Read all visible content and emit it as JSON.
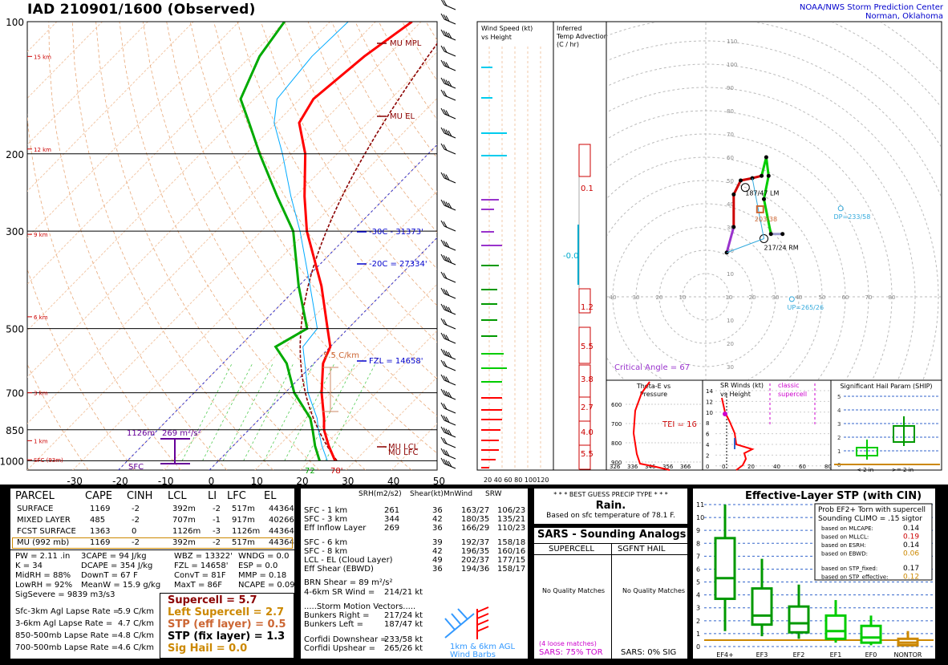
{
  "header": {
    "title": "IAD   210901/1600  (Observed)",
    "credit_line1": "NOAA/NWS Storm Prediction Center",
    "credit_line2": "Norman, Oklahoma"
  },
  "skewt": {
    "pressure_labels": [
      "100",
      "200",
      "300",
      "500",
      "700",
      "850",
      "1000"
    ],
    "temp_labels": [
      "-30",
      "-20",
      "-10",
      "0",
      "10",
      "20",
      "30",
      "40",
      "50"
    ],
    "height_labels": [
      "15 km",
      "12 km",
      "9 km",
      "6 km",
      "3 km",
      "1 km",
      "SFC (93m)"
    ],
    "annotations": {
      "mu_mpl": "MU  MPL",
      "mu_el": "MU  EL",
      "minus30": "-30C - 31373'",
      "minus20": "-20C = 27334'",
      "fzl": "FZL = 14658'",
      "lapse": "5.5 C/km",
      "mu_lcl": "MU  LCL",
      "mu_lfc": "MU  LFC",
      "pbl": "1126m",
      "srh": "269 m²/s²",
      "sfc": "SFC",
      "dewpoint_sfc": "72",
      "temp_sfc": "78'"
    },
    "colors": {
      "temperature": "#ff0000",
      "dewpoint": "#00aa00",
      "virtual": "#cc0000",
      "parcel": "#8b0000",
      "wetbulb": "#00aaff"
    }
  },
  "chart_data": [
    {
      "type": "line",
      "title": "",
      "xlabel": "",
      "ylabel": "",
      "xlim": [
        -40,
        50
      ],
      "ylim": [
        1000,
        100
      ],
      "series": [
        {
          "name": "",
          "p": [
            1000,
            925,
            850,
            800,
            700,
            600,
            550,
            500,
            400,
            300,
            250,
            200,
            170,
            150,
            120,
            100
          ],
          "values": [
            25.6,
            21,
            16.5,
            14,
            8,
            2,
            0,
            -4.5,
            -15,
            -30,
            -38,
            -47,
            -55,
            -57,
            -55,
            -52
          ]
        },
        {
          "name": "",
          "p": [
            1000,
            925,
            850,
            800,
            700,
            600,
            550,
            500,
            400,
            300,
            250,
            200,
            170,
            150,
            120,
            100
          ],
          "values": [
            22.2,
            18,
            14,
            11,
            2,
            -6,
            -12,
            -9,
            -20,
            -33,
            -44,
            -57,
            -66,
            -73,
            -78,
            -80
          ]
        }
      ]
    },
    {
      "type": "scatter",
      "title": "",
      "xlabel": "",
      "ylabel": "",
      "xlim": [
        -50,
        80
      ],
      "ylim": [
        -30,
        110
      ],
      "series": [
        {
          "name": "",
          "x": [
            9,
            12,
            12,
            15,
            20,
            24,
            26,
            27,
            25,
            28,
            33
          ],
          "y": [
            9,
            20,
            34,
            40,
            41,
            42,
            50,
            42,
            32,
            17,
            17
          ]
        }
      ]
    }
  ],
  "barbs_panel": {
    "label1": "Wind Speed (kt)",
    "label2": "vs Height",
    "axis": "20 40 60 80 100120"
  },
  "advection": {
    "label1": "Inferred",
    "label2": "Temp Advection",
    "label3": "(C / hr)",
    "values": [
      "0.1",
      "-0.0",
      "1.2",
      "5.5",
      "3.8",
      "2.7",
      "4.0",
      "5.5"
    ]
  },
  "hodograph": {
    "rings": [
      "110",
      "100",
      "90",
      "80",
      "70",
      "60",
      "50",
      "40",
      "30",
      "20",
      "10"
    ],
    "xticks": [
      "50",
      "40",
      "30",
      "20",
      "10",
      "10",
      "20",
      "30",
      "40",
      "50",
      "60",
      "70",
      "80"
    ],
    "lower_ticks": [
      "10",
      "20",
      "30"
    ],
    "lm_label": "187/47 LM",
    "rm_label": "217/24 RM",
    "mean_label": "203/38",
    "dp_label": "DP=233/58",
    "up_label": "UP=265/26",
    "critical_angle": "Critical Angle = 67"
  },
  "theta_panel": {
    "title1": "Theta-E vs",
    "title2": "Pressure",
    "tei": "TEI = 16",
    "plevels": [
      "600",
      "700",
      "800",
      "900"
    ],
    "xticks": [
      "326",
      "336",
      "346",
      "356",
      "366"
    ]
  },
  "sr_panel": {
    "title1": "SR Winds (kt)",
    "title2": "vs Height",
    "classic1": "classic",
    "classic2": "supercell",
    "yticks": [
      "14",
      "12",
      "10",
      "8",
      "6",
      "4",
      "2",
      "0"
    ],
    "xticks": [
      "0",
      "20",
      "40",
      "60",
      "80"
    ]
  },
  "ship_panel": {
    "title": "Significant Hail Param (SHIP)",
    "yticks": [
      "5",
      "4",
      "3",
      "2",
      "1",
      "0"
    ],
    "cat1": "< 2 in",
    "cat2": ">= 2 in"
  },
  "parcel_table": {
    "headers": [
      "PARCEL",
      "CAPE",
      "CINH",
      "LCL",
      "LI",
      "LFC",
      "EL"
    ],
    "rows": [
      [
        "SURFACE",
        "1169",
        "-2",
        "392m",
        "-2",
        "517m",
        "44364'"
      ],
      [
        "MIXED LAYER",
        "485",
        "-2",
        "707m",
        "-1",
        "917m",
        "40266'"
      ],
      [
        "FCST SURFACE",
        "1363",
        "0",
        "1126m",
        "-3",
        "1126m",
        "44364'"
      ],
      [
        "MU  (992 mb)",
        "1169",
        "-2",
        "392m",
        "-2",
        "517m",
        "44364'"
      ]
    ],
    "indices": [
      [
        "PW = 2.11 .in",
        "3CAPE = 94 J/kg",
        "WBZ = 13322'",
        "WNDG = 0.0"
      ],
      [
        "K = 34",
        "DCAPE = 354 J/kg",
        "FZL = 14658'",
        "ESP = 0.0"
      ],
      [
        "MidRH = 88%",
        "DownT = 67 F",
        "ConvT = 81F",
        "MMP = 0.18"
      ],
      [
        "LowRH = 92%",
        "MeanW = 15.9 g/kg",
        "MaxT = 86F",
        "NCAPE = 0.09"
      ],
      [
        "SigSevere = 9839 m3/s3",
        "",
        "",
        ""
      ]
    ],
    "lapse": [
      [
        "Sfc-3km Agl Lapse Rate =",
        "5.9 C/km"
      ],
      [
        "3-6km Agl Lapse Rate =",
        "4.7 C/km"
      ],
      [
        "850-500mb Lapse Rate =",
        "4.8 C/km"
      ],
      [
        "700-500mb Lapse Rate =",
        "4.6 C/km"
      ]
    ],
    "composites": [
      {
        "label": "Supercell = 5.7",
        "color": "#8b0000"
      },
      {
        "label": "Left Supercell = 2.7",
        "color": "#cc8800"
      },
      {
        "label": "STP (eff layer) = 0.5",
        "color": "#cc6633"
      },
      {
        "label": "STP (fix layer) = 1.3",
        "color": "#000000"
      },
      {
        "label": "Sig Hail = 0.0",
        "color": "#cc8800"
      }
    ]
  },
  "kinematics": {
    "headers": [
      "SRH(m2/s2)",
      "Shear(kt)",
      "MnWind",
      "SRW"
    ],
    "rows1": [
      [
        "SFC - 1 km",
        "261",
        "36",
        "163/27",
        "106/23"
      ],
      [
        "SFC - 3 km",
        "344",
        "42",
        "180/35",
        "135/21"
      ],
      [
        "Eff Inflow Layer",
        "269",
        "36",
        "166/29",
        "110/23"
      ]
    ],
    "rows2": [
      [
        "SFC - 6 km",
        "",
        "39",
        "192/37",
        "158/18"
      ],
      [
        "SFC - 8 km",
        "",
        "42",
        "196/35",
        "160/16"
      ],
      [
        "LCL - EL (Cloud Layer)",
        "",
        "49",
        "202/37",
        "177/15"
      ],
      [
        "Eff Shear (EBWD)",
        "",
        "36",
        "194/36",
        "158/17"
      ]
    ],
    "brn": "BRN Shear =  89 m²/s²",
    "sr_wind": [
      "4-6km SR Wind =",
      "214/21 kt"
    ],
    "motion_title": ".....Storm Motion Vectors.....",
    "motion": [
      [
        "Bunkers Right =",
        "217/24 kt"
      ],
      [
        "Bunkers Left =",
        "187/47 kt"
      ],
      [
        "Corfidi Downshear =",
        "233/58 kt"
      ],
      [
        "Corfidi Upshear =",
        "265/26 kt"
      ]
    ],
    "barb_label1": "1km & 6km AGL",
    "barb_label2": "Wind Barbs"
  },
  "precip": {
    "title": "* * * BEST GUESS PRECIP TYPE * * *",
    "type": "Rain.",
    "basis": "Based on sfc temperature of 78.1 F."
  },
  "sars": {
    "title": "SARS - Sounding Analogs",
    "col1": "SUPERCELL",
    "col2": "SGFNT HAIL",
    "nomatch1": "No Quality Matches",
    "nomatch2": "No Quality Matches",
    "loose": "(4 loose matches)",
    "tor": "SARS:  75% TOR",
    "sig": "SARS:  0% SIG"
  },
  "stp": {
    "title": "Effective-Layer STP (with CIN)",
    "yticks": [
      "11",
      "10",
      "9",
      "8",
      "7",
      "6",
      "5",
      "4",
      "3",
      "2",
      "1",
      "0"
    ],
    "categories": [
      "EF4+",
      "EF3",
      "EF2",
      "EF1",
      "EF0",
      "NONTOR"
    ],
    "prob_title1": "Prob EF2+ Torn with supercell",
    "prob_title2": "Sounding CLIMO = .15 sigtor",
    "probs": [
      [
        "based on MLCAPE:",
        "0.14"
      ],
      [
        "based on MLLCL:",
        "0.19"
      ],
      [
        "based on ESRH:",
        "0.14"
      ],
      [
        "based on EBWD:",
        "0.06"
      ],
      [
        "based on STP_fixed:",
        "0.17"
      ],
      [
        "based on STP_effective:",
        "0.12"
      ]
    ]
  }
}
